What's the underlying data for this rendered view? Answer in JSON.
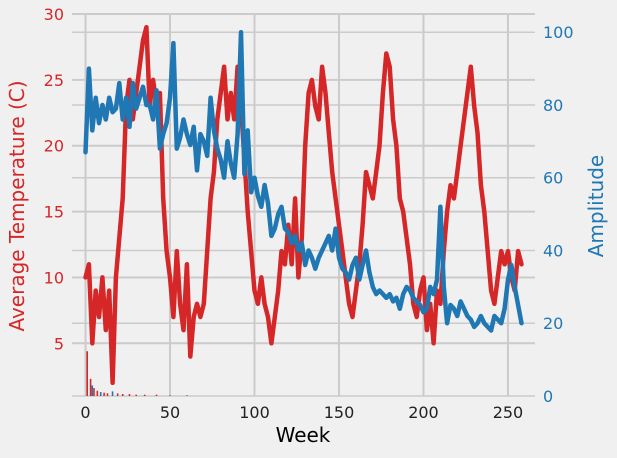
{
  "chart_data": {
    "type": "line",
    "xlabel": "Week",
    "ylabel_left": "Average Temperature (C)",
    "ylabel_right": "Amplitude",
    "xlim": [
      -8,
      266
    ],
    "ylim_left": [
      1,
      30
    ],
    "ylim_right": [
      0,
      105
    ],
    "x_ticks": [
      "0",
      "50",
      "100",
      "150",
      "200",
      "250"
    ],
    "y_left_ticks": [
      "5",
      "10",
      "15",
      "20",
      "25",
      "30"
    ],
    "y_right_ticks": [
      "0",
      "20",
      "40",
      "60",
      "80",
      "100"
    ],
    "grid": true,
    "colors": {
      "temperature": "#d62728",
      "amplitude": "#1f77b4",
      "background": "#f0f0f0",
      "grid": "#cbcbcb"
    },
    "series": [
      {
        "axis": "left",
        "color": "#d62728",
        "x": [
          0,
          2,
          4,
          6,
          8,
          10,
          12,
          14,
          16,
          18,
          20,
          22,
          24,
          26,
          28,
          30,
          32,
          34,
          36,
          38,
          40,
          42,
          44,
          46,
          48,
          50,
          52,
          54,
          56,
          58,
          60,
          62,
          64,
          66,
          68,
          70,
          72,
          74,
          76,
          78,
          80,
          82,
          84,
          86,
          88,
          90,
          92,
          94,
          96,
          98,
          100,
          102,
          104,
          106,
          108,
          110,
          112,
          114,
          116,
          118,
          120,
          122,
          124,
          126,
          128,
          130,
          132,
          134,
          136,
          138,
          140,
          142,
          144,
          146,
          148,
          150,
          152,
          154,
          156,
          158,
          160,
          162,
          164,
          166,
          168,
          170,
          172,
          174,
          176,
          178,
          180,
          182,
          184,
          186,
          188,
          190,
          192,
          194,
          196,
          198,
          200,
          202,
          204,
          206,
          208,
          210,
          212,
          214,
          216,
          218,
          220,
          222,
          224,
          226,
          228,
          230,
          232,
          234,
          236,
          238,
          240,
          242,
          244,
          246,
          248,
          250,
          252,
          254,
          256,
          258
        ],
        "values": [
          10,
          11,
          5,
          9,
          7,
          10,
          6,
          9,
          2,
          10,
          13,
          16,
          23,
          25,
          22,
          24,
          26,
          28,
          29,
          23,
          25,
          23,
          24,
          16,
          12,
          10,
          7,
          12,
          8,
          6,
          11,
          4,
          7,
          8,
          7,
          8,
          12,
          16,
          18,
          22,
          24,
          26,
          22,
          24,
          22,
          26,
          23,
          19,
          15,
          12,
          9,
          8,
          10,
          8,
          7,
          5,
          7,
          9,
          12,
          11,
          14,
          11,
          16,
          10,
          13,
          20,
          24,
          25,
          23,
          22,
          26,
          24,
          21,
          18,
          16,
          14,
          12,
          10,
          8,
          7,
          9,
          11,
          14,
          18,
          17,
          16,
          18,
          20,
          24,
          27,
          26,
          22,
          20,
          16,
          15,
          13,
          11,
          8,
          7,
          9,
          10,
          6,
          8,
          5,
          9,
          8,
          12,
          15,
          17,
          16,
          18,
          20,
          22,
          24,
          26,
          23,
          21,
          17,
          15,
          12,
          9,
          8,
          10,
          12,
          11,
          12,
          10,
          9,
          12,
          11
        ]
      },
      {
        "axis": "right",
        "color": "#1f77b4",
        "x": [
          0,
          2,
          4,
          6,
          8,
          10,
          12,
          14,
          16,
          18,
          20,
          22,
          24,
          26,
          28,
          30,
          32,
          34,
          36,
          38,
          40,
          42,
          44,
          46,
          48,
          50,
          52,
          54,
          56,
          58,
          60,
          62,
          64,
          66,
          68,
          70,
          72,
          74,
          76,
          78,
          80,
          82,
          84,
          86,
          88,
          90,
          92,
          94,
          96,
          98,
          100,
          102,
          104,
          106,
          108,
          110,
          112,
          114,
          116,
          118,
          120,
          122,
          124,
          126,
          128,
          130,
          132,
          134,
          136,
          138,
          140,
          142,
          144,
          146,
          148,
          150,
          152,
          154,
          156,
          158,
          160,
          162,
          164,
          166,
          168,
          170,
          172,
          174,
          176,
          178,
          180,
          182,
          184,
          186,
          188,
          190,
          192,
          194,
          196,
          198,
          200,
          202,
          204,
          206,
          208,
          210,
          212,
          214,
          216,
          218,
          220,
          222,
          224,
          226,
          228,
          230,
          232,
          234,
          236,
          238,
          240,
          242,
          244,
          246,
          248,
          250,
          252,
          254,
          256,
          258
        ],
        "values": [
          67,
          90,
          73,
          82,
          75,
          80,
          76,
          82,
          78,
          79,
          86,
          76,
          82,
          74,
          86,
          79,
          82,
          85,
          80,
          80,
          76,
          84,
          68,
          72,
          75,
          82,
          97,
          68,
          71,
          76,
          72,
          69,
          74,
          62,
          72,
          70,
          66,
          82,
          73,
          68,
          65,
          60,
          70,
          64,
          60,
          72,
          100,
          61,
          73,
          56,
          60,
          55,
          52,
          58,
          53,
          44,
          46,
          50,
          52,
          46,
          45,
          42,
          44,
          40,
          42,
          36,
          40,
          38,
          35,
          38,
          40,
          42,
          44,
          40,
          46,
          38,
          35,
          34,
          32,
          36,
          38,
          32,
          36,
          40,
          34,
          30,
          28,
          29,
          28,
          27,
          28,
          26,
          27,
          24,
          28,
          30,
          29,
          27,
          26,
          25,
          23,
          24,
          30,
          28,
          32,
          52,
          30,
          20,
          25,
          24,
          22,
          26,
          24,
          22,
          21,
          19,
          20,
          22,
          20,
          19,
          18,
          22,
          21,
          20,
          24,
          32,
          36,
          30,
          25,
          20
        ]
      }
    ]
  },
  "inset_bars": [
    {
      "x": 1,
      "value": 4.4,
      "color": "#d62728"
    },
    {
      "x": 3,
      "value": 2.3,
      "color": "#d62728"
    },
    {
      "x": 4,
      "value": 1.8,
      "color": "#1f77b4"
    },
    {
      "x": 5,
      "value": 1.6,
      "color": "#d62728"
    },
    {
      "x": 7,
      "value": 1.4,
      "color": "#d62728"
    },
    {
      "x": 9,
      "value": 1.3,
      "color": "#1f77b4"
    },
    {
      "x": 11,
      "value": 1.25,
      "color": "#d62728"
    },
    {
      "x": 13,
      "value": 1.2,
      "color": "#d62728"
    },
    {
      "x": 16,
      "value": 1.35,
      "color": "#1f77b4"
    },
    {
      "x": 19,
      "value": 1.2,
      "color": "#d62728"
    },
    {
      "x": 22,
      "value": 1.15,
      "color": "#d62728"
    },
    {
      "x": 26,
      "value": 1.15,
      "color": "#d62728"
    },
    {
      "x": 30,
      "value": 1.1,
      "color": "#d62728"
    },
    {
      "x": 35,
      "value": 1.1,
      "color": "#d62728"
    },
    {
      "x": 42,
      "value": 1.1,
      "color": "#d62728"
    },
    {
      "x": 50,
      "value": 1.05,
      "color": "#d62728"
    },
    {
      "x": 60,
      "value": 1.05,
      "color": "#d62728"
    }
  ]
}
